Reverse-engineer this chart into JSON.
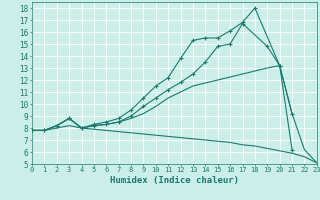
{
  "xlabel": "Humidex (Indice chaleur)",
  "bg_color": "#cceee8",
  "grid_color": "#ffffff",
  "line_color": "#1a7a6e",
  "series": [
    {
      "x": [
        0,
        1,
        2,
        3,
        4,
        5,
        6,
        7,
        8,
        9,
        10,
        11,
        12,
        13,
        14,
        15,
        16,
        17,
        18,
        20,
        21
      ],
      "y": [
        7.8,
        7.8,
        8.2,
        8.8,
        8.0,
        8.3,
        8.5,
        8.8,
        9.5,
        10.5,
        11.5,
        12.2,
        13.8,
        15.3,
        15.5,
        15.5,
        16.1,
        16.8,
        18.0,
        13.2,
        9.2
      ],
      "marker": true
    },
    {
      "x": [
        0,
        1,
        2,
        3,
        4,
        5,
        6,
        7,
        8,
        9,
        10,
        11,
        12,
        13,
        14,
        15,
        16,
        17,
        19,
        20,
        21
      ],
      "y": [
        7.8,
        7.8,
        8.2,
        8.8,
        8.0,
        8.2,
        8.3,
        8.5,
        9.0,
        9.8,
        10.5,
        11.2,
        11.8,
        12.5,
        13.5,
        14.8,
        15.0,
        16.7,
        14.8,
        13.2,
        6.2
      ],
      "marker": true
    },
    {
      "x": [
        0,
        1,
        2,
        3,
        4,
        5,
        6,
        7,
        8,
        9,
        10,
        11,
        12,
        13,
        19,
        20,
        21,
        22,
        23
      ],
      "y": [
        7.8,
        7.8,
        8.2,
        8.8,
        8.0,
        8.2,
        8.3,
        8.5,
        8.8,
        9.2,
        9.8,
        10.5,
        11.0,
        11.5,
        13.0,
        13.2,
        9.2,
        6.2,
        5.1
      ],
      "marker": false
    },
    {
      "x": [
        0,
        1,
        2,
        3,
        4,
        5,
        6,
        7,
        8,
        9,
        10,
        11,
        12,
        13,
        14,
        15,
        16,
        17,
        18,
        19,
        20,
        21,
        22,
        23
      ],
      "y": [
        7.8,
        7.8,
        8.0,
        8.2,
        8.0,
        7.9,
        7.8,
        7.7,
        7.6,
        7.5,
        7.4,
        7.3,
        7.2,
        7.1,
        7.0,
        6.9,
        6.8,
        6.6,
        6.5,
        6.3,
        6.1,
        5.9,
        5.6,
        5.1
      ],
      "marker": false
    }
  ],
  "xlim": [
    0,
    23
  ],
  "ylim": [
    5,
    18.5
  ],
  "xticks": [
    0,
    1,
    2,
    3,
    4,
    5,
    6,
    7,
    8,
    9,
    10,
    11,
    12,
    13,
    14,
    15,
    16,
    17,
    18,
    19,
    20,
    21,
    22,
    23
  ],
  "yticks": [
    5,
    6,
    7,
    8,
    9,
    10,
    11,
    12,
    13,
    14,
    15,
    16,
    17,
    18
  ]
}
